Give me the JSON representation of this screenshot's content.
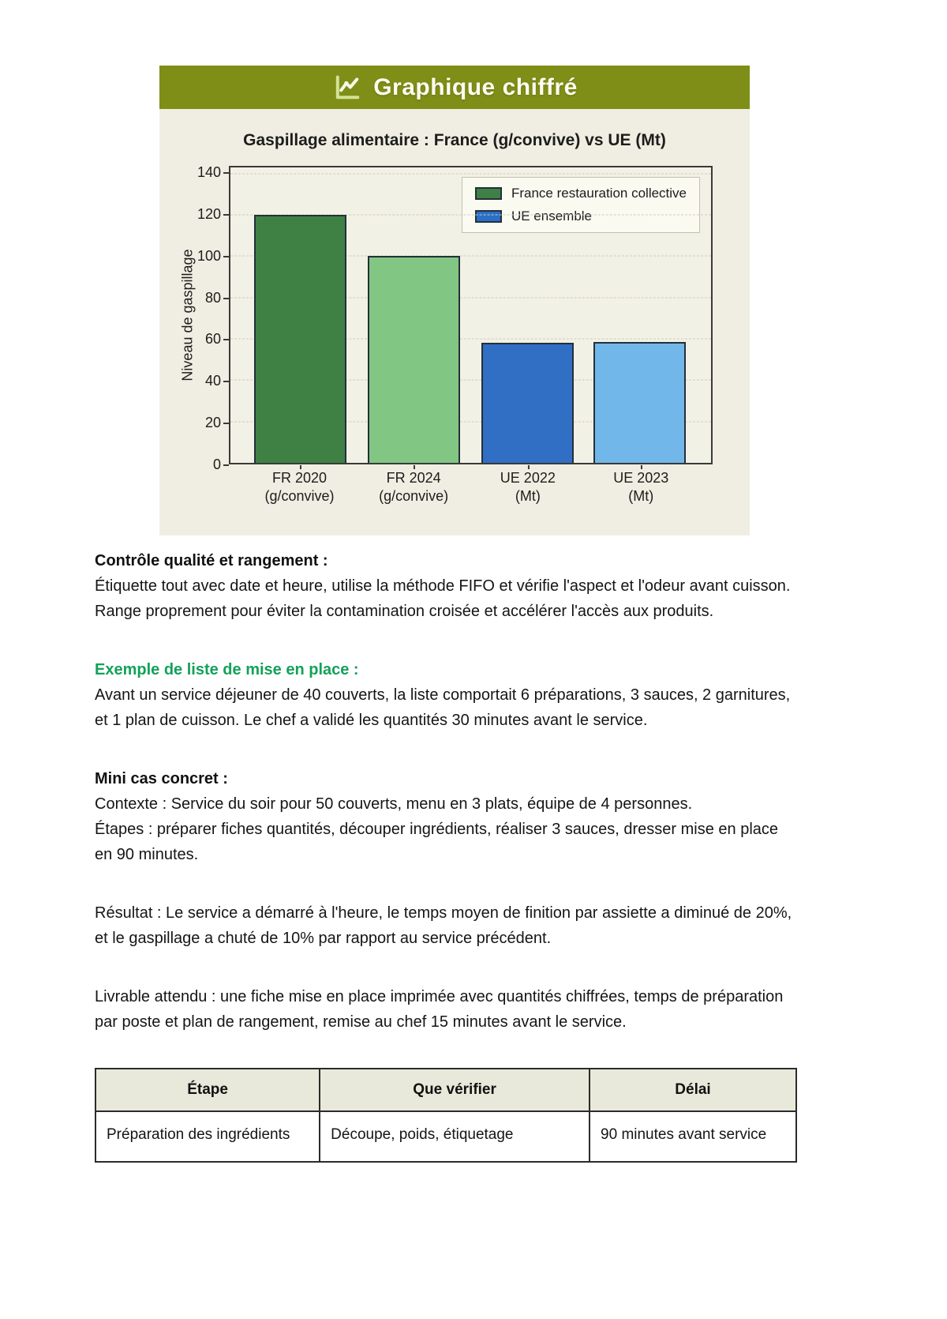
{
  "banner": {
    "title": "Graphique chiffré",
    "icon": "chart-line-icon"
  },
  "chart_data": {
    "type": "bar",
    "title": "Gaspillage alimentaire : France (g/convive) vs UE (Mt)",
    "xlabel": "",
    "ylabel": "Niveau de gaspillage",
    "ylim": [
      0,
      143
    ],
    "yticks": [
      0,
      20,
      40,
      60,
      80,
      100,
      120,
      140
    ],
    "grid": true,
    "legend_position": "top-right",
    "categories": [
      "FR 2020\n(g/convive)",
      "FR 2024\n(g/convive)",
      "UE 2022\n(Mt)",
      "UE 2023\n(Mt)"
    ],
    "values": [
      120,
      100,
      58,
      58.5
    ],
    "bar_colors": [
      "#3f8145",
      "#82c683",
      "#316fc4",
      "#72b7ea"
    ],
    "legend": [
      {
        "label": "France restauration collective",
        "color": "#3f8145"
      },
      {
        "label": "UE ensemble",
        "color": "#2b6fc6"
      }
    ]
  },
  "sections": [
    {
      "heading": "Contrôle qualité et rangement :",
      "style": "bold",
      "lines": [
        "Étiquette tout avec date et heure, utilise la méthode FIFO et vérifie l'aspect et l'odeur avant cuisson. Range proprement pour éviter la contamination croisée et accélérer l'accès aux produits."
      ]
    },
    {
      "heading": "Exemple de liste de mise en place :",
      "style": "green",
      "lines": [
        "Avant un service déjeuner de 40 couverts, la liste comportait 6 préparations, 3 sauces, 2 garnitures, et 1 plan de cuisson. Le chef a validé les quantités 30 minutes avant le service."
      ]
    },
    {
      "heading": "Mini cas concret :",
      "style": "bold",
      "lines": [
        "Contexte : Service du soir pour 50 couverts, menu en 3 plats, équipe de 4 personnes.",
        "Étapes : préparer fiches quantités, découper ingrédients, réaliser 3 sauces, dresser mise en place en 90 minutes."
      ]
    },
    {
      "heading": null,
      "style": "plain",
      "lines": [
        "Résultat : Le service a démarré à l'heure, le temps moyen de finition par assiette a diminué de 20%, et le gaspillage a chuté de 10% par rapport au service précédent."
      ]
    },
    {
      "heading": null,
      "style": "plain",
      "lines": [
        "Livrable attendu : une fiche mise en place imprimée avec quantités chiffrées, temps de préparation par poste et plan de rangement, remise au chef 15 minutes avant le service."
      ]
    }
  ],
  "table": {
    "headers": [
      "Étape",
      "Que vérifier",
      "Délai"
    ],
    "rows": [
      [
        "Préparation des ingrédients",
        "Découpe, poids, étiquetage",
        "90 minutes avant service"
      ]
    ]
  }
}
